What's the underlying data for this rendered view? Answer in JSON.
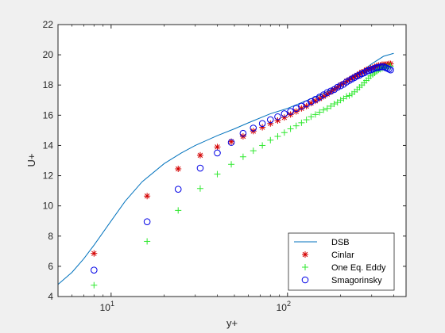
{
  "chart_data": {
    "type": "scatter",
    "title": "",
    "xlabel": "y+",
    "ylabel": "U+",
    "xscale": "log",
    "xlim": [
      5,
      470
    ],
    "ylim": [
      4,
      22
    ],
    "grid": false,
    "legend_position": "bottom-right",
    "x_ticks": [
      {
        "value": 10,
        "base": "10",
        "exp": "1"
      },
      {
        "value": 100,
        "base": "10",
        "exp": "2"
      }
    ],
    "y_ticks": [
      4,
      6,
      8,
      10,
      12,
      14,
      16,
      18,
      20,
      22
    ],
    "series": [
      {
        "name": "DSB",
        "marker": "line",
        "color": "#0072bd",
        "x": [
          5,
          6,
          7,
          8,
          10,
          12,
          15,
          20,
          25,
          30,
          40,
          50,
          60,
          80,
          100,
          150,
          200,
          250,
          300,
          350,
          400
        ],
        "y": [
          4.8,
          5.6,
          6.5,
          7.4,
          9.0,
          10.3,
          11.6,
          12.8,
          13.5,
          14.0,
          14.65,
          15.1,
          15.5,
          16.1,
          16.45,
          17.3,
          18.0,
          18.7,
          19.4,
          19.9,
          20.1
        ]
      },
      {
        "name": "Cinlar",
        "marker": "asterisk",
        "color": "#d40000",
        "x": [
          8,
          16,
          24,
          32,
          40,
          48,
          56,
          64,
          72,
          80,
          88,
          96,
          104,
          112,
          120,
          128,
          136,
          144,
          152,
          160,
          168,
          176,
          184,
          192,
          200,
          208,
          216,
          224,
          232,
          240,
          248,
          256,
          264,
          272,
          280,
          288,
          296,
          304,
          312,
          320,
          328,
          336,
          344,
          352,
          360,
          368,
          376,
          384
        ],
        "y": [
          6.85,
          10.65,
          12.45,
          13.35,
          13.9,
          14.25,
          14.6,
          14.95,
          15.2,
          15.45,
          15.65,
          15.85,
          16.05,
          16.25,
          16.45,
          16.6,
          16.8,
          16.95,
          17.1,
          17.25,
          17.4,
          17.55,
          17.7,
          17.85,
          18.0,
          18.1,
          18.25,
          18.35,
          18.45,
          18.55,
          18.65,
          18.75,
          18.85,
          18.9,
          19.0,
          19.05,
          19.1,
          19.15,
          19.2,
          19.25,
          19.3,
          19.3,
          19.35,
          19.35,
          19.35,
          19.35,
          19.4,
          19.4
        ]
      },
      {
        "name": "One Eq. Eddy",
        "marker": "plus",
        "color": "#2ee82e",
        "x": [
          8,
          16,
          24,
          32,
          40,
          48,
          56,
          64,
          72,
          80,
          88,
          96,
          104,
          112,
          120,
          128,
          136,
          144,
          152,
          160,
          168,
          176,
          184,
          192,
          200,
          208,
          216,
          224,
          232,
          240,
          248,
          256,
          264,
          272,
          280,
          288,
          296,
          304,
          312,
          320,
          328,
          336,
          344,
          352,
          360,
          368,
          376,
          384
        ],
        "y": [
          4.75,
          7.65,
          9.7,
          11.15,
          12.1,
          12.75,
          13.25,
          13.65,
          14.0,
          14.35,
          14.6,
          14.85,
          15.1,
          15.3,
          15.5,
          15.7,
          15.9,
          16.05,
          16.2,
          16.35,
          16.45,
          16.6,
          16.75,
          16.85,
          17.0,
          17.1,
          17.25,
          17.3,
          17.4,
          17.55,
          17.7,
          17.85,
          18.0,
          18.15,
          18.3,
          18.45,
          18.6,
          18.7,
          18.8,
          18.9,
          19.0,
          19.05,
          19.1,
          19.15,
          19.2,
          19.2,
          19.25,
          19.25
        ]
      },
      {
        "name": "Smagorinsky",
        "marker": "circle",
        "color": "#0000e6",
        "x": [
          8,
          16,
          24,
          32,
          40,
          48,
          56,
          64,
          72,
          80,
          88,
          96,
          104,
          112,
          120,
          128,
          136,
          144,
          152,
          160,
          168,
          176,
          184,
          192,
          200,
          208,
          216,
          224,
          232,
          240,
          248,
          256,
          264,
          272,
          280,
          288,
          296,
          304,
          312,
          320,
          328,
          336,
          344,
          352,
          360,
          368,
          376,
          384
        ],
        "y": [
          5.75,
          8.95,
          11.1,
          12.5,
          13.5,
          14.2,
          14.8,
          15.15,
          15.45,
          15.7,
          15.9,
          16.1,
          16.25,
          16.45,
          16.6,
          16.75,
          16.9,
          17.05,
          17.2,
          17.35,
          17.5,
          17.6,
          17.7,
          17.85,
          17.95,
          18.05,
          18.2,
          18.3,
          18.4,
          18.5,
          18.6,
          18.65,
          18.75,
          18.8,
          18.9,
          18.95,
          19.0,
          19.05,
          19.1,
          19.15,
          19.15,
          19.2,
          19.2,
          19.2,
          19.15,
          19.1,
          19.05,
          19.0
        ]
      }
    ]
  }
}
